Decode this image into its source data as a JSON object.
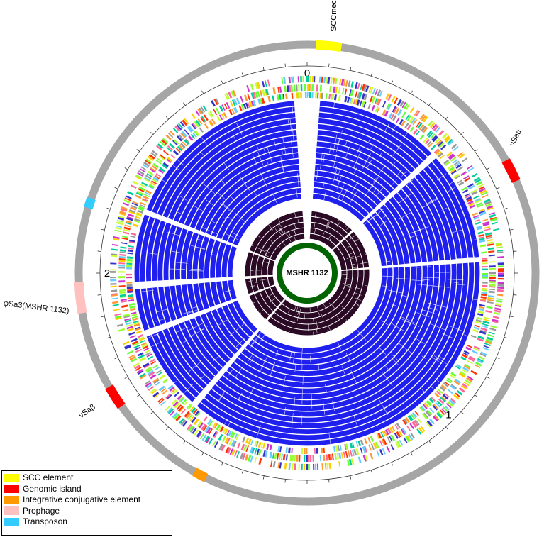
{
  "center_label": "MSHR 1132",
  "scale_labels": [
    "0",
    "1",
    "2"
  ],
  "regions": [
    {
      "name": "SCCmec",
      "type": "SCC element",
      "start": 0.006,
      "end": 0.024
    },
    {
      "name": "νSaα",
      "type": "Genomic island",
      "start": 0.168,
      "end": 0.184
    },
    {
      "name": "φSa3(MSHR 1132)",
      "type": "Prophage",
      "start": 0.722,
      "end": 0.744
    },
    {
      "name": "",
      "type": "Transposon",
      "start": 0.796,
      "end": 0.803
    },
    {
      "name": "νSaβ",
      "type": "Genomic island",
      "start": 0.651,
      "end": 0.667
    },
    {
      "name": "",
      "type": "Integrative conjugative element",
      "start": 0.573,
      "end": 0.582
    }
  ],
  "legend": [
    {
      "label": "SCC element",
      "color": "#ffff00"
    },
    {
      "label": "Genomic island",
      "color": "#ff0000"
    },
    {
      "label": "Integrative conjugative element",
      "color": "#ff9900"
    },
    {
      "label": "Prophage",
      "color": "#ffc0c0"
    },
    {
      "label": "Transposon",
      "color": "#33ccff"
    }
  ],
  "colors": {
    "backbone": "#a6a6a6",
    "blast_outer": "#2020ee",
    "blast_inner": "#2a0a24",
    "reference": "#006400",
    "gene_palette": [
      "#66ff33",
      "#99ff33",
      "#ccff33",
      "#ff9933",
      "#ff3300",
      "#cc33cc",
      "#3333cc",
      "#00cc99",
      "#ffcc00",
      "#999999",
      "#66ccff",
      "#ff6699"
    ]
  }
}
